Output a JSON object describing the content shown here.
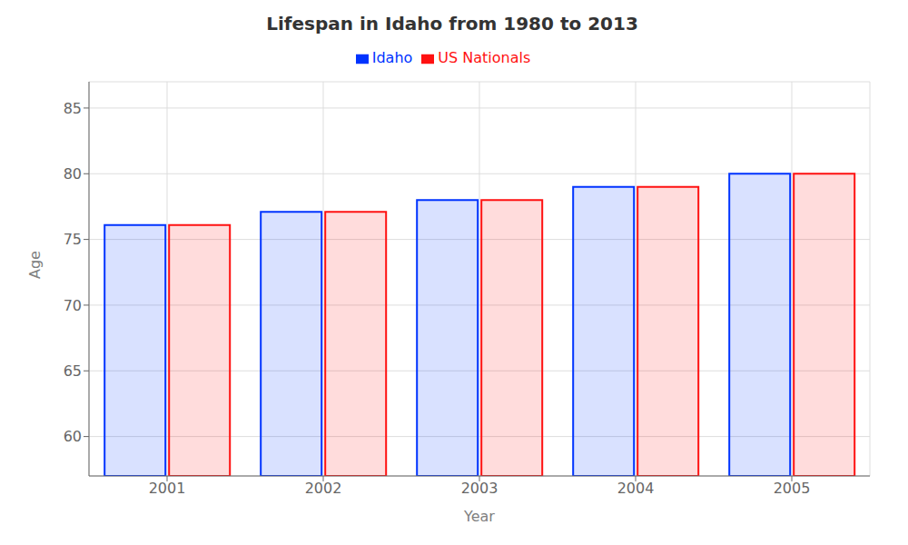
{
  "chart_data": {
    "type": "bar",
    "title": "Lifespan in Idaho from 1980 to 2013",
    "xlabel": "Year",
    "ylabel": "Age",
    "categories": [
      "2001",
      "2002",
      "2003",
      "2004",
      "2005"
    ],
    "series": [
      {
        "name": "Idaho",
        "color": "#0033ff",
        "values": [
          76.1,
          77.1,
          78.0,
          79.0,
          80.0
        ]
      },
      {
        "name": "US Nationals",
        "color": "#ff1111",
        "values": [
          76.1,
          77.1,
          78.0,
          79.0,
          80.0
        ]
      }
    ],
    "ylim": [
      57,
      87
    ],
    "yticks": [
      60,
      65,
      70,
      75,
      80,
      85
    ],
    "grid": true,
    "legend": "top"
  }
}
